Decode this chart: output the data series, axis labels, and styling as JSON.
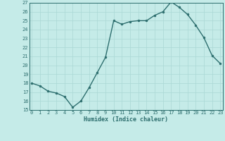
{
  "xlabel": "Humidex (Indice chaleur)",
  "x": [
    0,
    1,
    2,
    3,
    4,
    5,
    6,
    7,
    8,
    9,
    10,
    11,
    12,
    13,
    14,
    15,
    16,
    17,
    18,
    19,
    20,
    21,
    22,
    23
  ],
  "y": [
    18.0,
    17.7,
    17.1,
    16.9,
    16.5,
    15.3,
    16.0,
    17.5,
    19.2,
    20.9,
    25.0,
    24.6,
    24.9,
    25.0,
    25.0,
    25.6,
    26.0,
    27.1,
    26.5,
    25.7,
    24.5,
    23.1,
    21.1,
    20.2
  ],
  "line_color": "#2d6e6e",
  "marker_color": "#2d6e6e",
  "bg_color": "#c5ebe8",
  "grid_color": "#aad8d5",
  "ylim": [
    15,
    27
  ],
  "yticks": [
    15,
    16,
    17,
    18,
    19,
    20,
    21,
    22,
    23,
    24,
    25,
    26,
    27
  ],
  "xticks": [
    0,
    1,
    2,
    3,
    4,
    5,
    6,
    7,
    8,
    9,
    10,
    11,
    12,
    13,
    14,
    15,
    16,
    17,
    18,
    19,
    20,
    21,
    22,
    23
  ],
  "tick_fontsize": 5.0,
  "label_fontsize": 6.0,
  "line_width": 1.0,
  "marker_size": 2.0
}
